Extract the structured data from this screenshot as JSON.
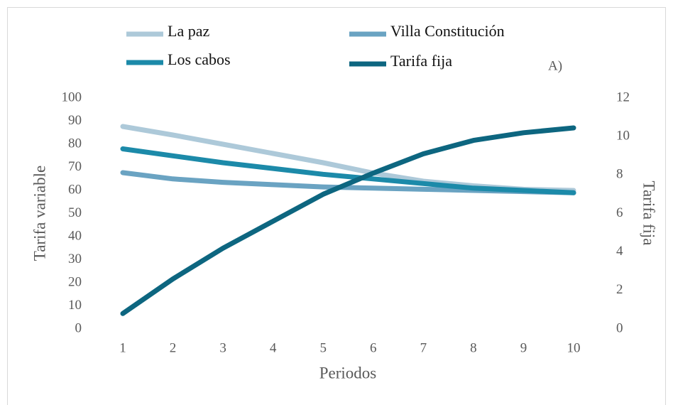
{
  "chart_data": {
    "type": "line",
    "annotation": "A)",
    "xlabel": "Periodos",
    "ylabel": "Tarifa variable",
    "y2label": "Tarifa fija",
    "categories": [
      "1",
      "2",
      "3",
      "4",
      "5",
      "6",
      "7",
      "8",
      "9",
      "10"
    ],
    "ylim": [
      0,
      100
    ],
    "yticks": [
      0,
      10,
      20,
      30,
      40,
      50,
      60,
      70,
      80,
      90,
      100
    ],
    "y2lim": [
      0,
      12
    ],
    "y2ticks": [
      0,
      2,
      4,
      6,
      8,
      10,
      12
    ],
    "series": [
      {
        "name": "La paz",
        "color": "#adc9d9",
        "values": [
          87.7,
          84,
          80,
          76,
          72,
          67.5,
          64,
          62,
          60.5,
          60
        ]
      },
      {
        "name": "Villa Constitución",
        "color": "#6aa3c2",
        "values": [
          67.7,
          65,
          63.5,
          62.5,
          61.5,
          61,
          60.5,
          60,
          59.5,
          59
        ]
      },
      {
        "name": "Los cabos",
        "color": "#1c8aa9",
        "values": [
          78,
          75,
          72,
          69.5,
          67,
          65,
          63,
          61,
          60,
          59
        ]
      },
      {
        "name": "Tarifa fija",
        "color": "#0d6680",
        "axis": "y2",
        "values": [
          0.8,
          2.6,
          4.2,
          5.6,
          7.0,
          8.1,
          9.1,
          9.8,
          10.2,
          10.45
        ]
      }
    ]
  }
}
